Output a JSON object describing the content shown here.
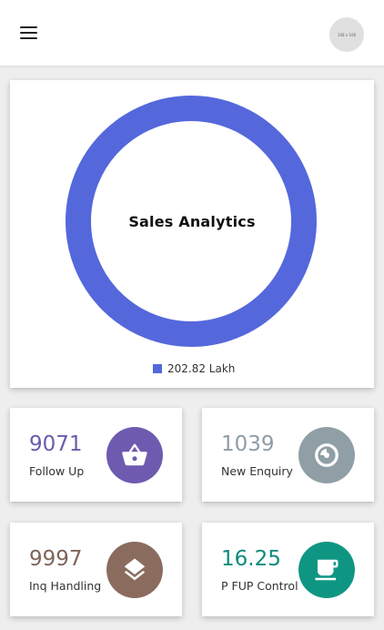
{
  "header": {
    "menu_icon": "hamburger-menu-icon",
    "avatar_text": "108 x 108"
  },
  "chart": {
    "title": "Sales Analytics",
    "legend_label": "202.82 Lakh",
    "color": "#5468dc"
  },
  "chart_data": {
    "type": "pie",
    "title": "Sales Analytics",
    "categories": [
      "202.82 Lakh"
    ],
    "values": [
      100
    ],
    "legend": "bottom",
    "colors": [
      "#5468dc"
    ]
  },
  "stats": [
    {
      "value": "9071",
      "label": "Follow Up",
      "icon": "shopping-basket-icon",
      "value_color": "#6b5bab",
      "icon_bg": "#6e5bb0"
    },
    {
      "value": "1039",
      "label": "New Enquiry",
      "icon": "record-icon",
      "value_color": "#8e9da6",
      "icon_bg": "#909fa6"
    },
    {
      "value": "9997",
      "label": "Inq Handling",
      "icon": "layers-icon",
      "value_color": "#7d6558",
      "icon_bg": "#8a6c5e"
    },
    {
      "value": "16.25",
      "label": "P FUP Control",
      "icon": "coffee-cup-icon",
      "value_color": "#0d8a7c",
      "icon_bg": "#0f9683"
    }
  ]
}
